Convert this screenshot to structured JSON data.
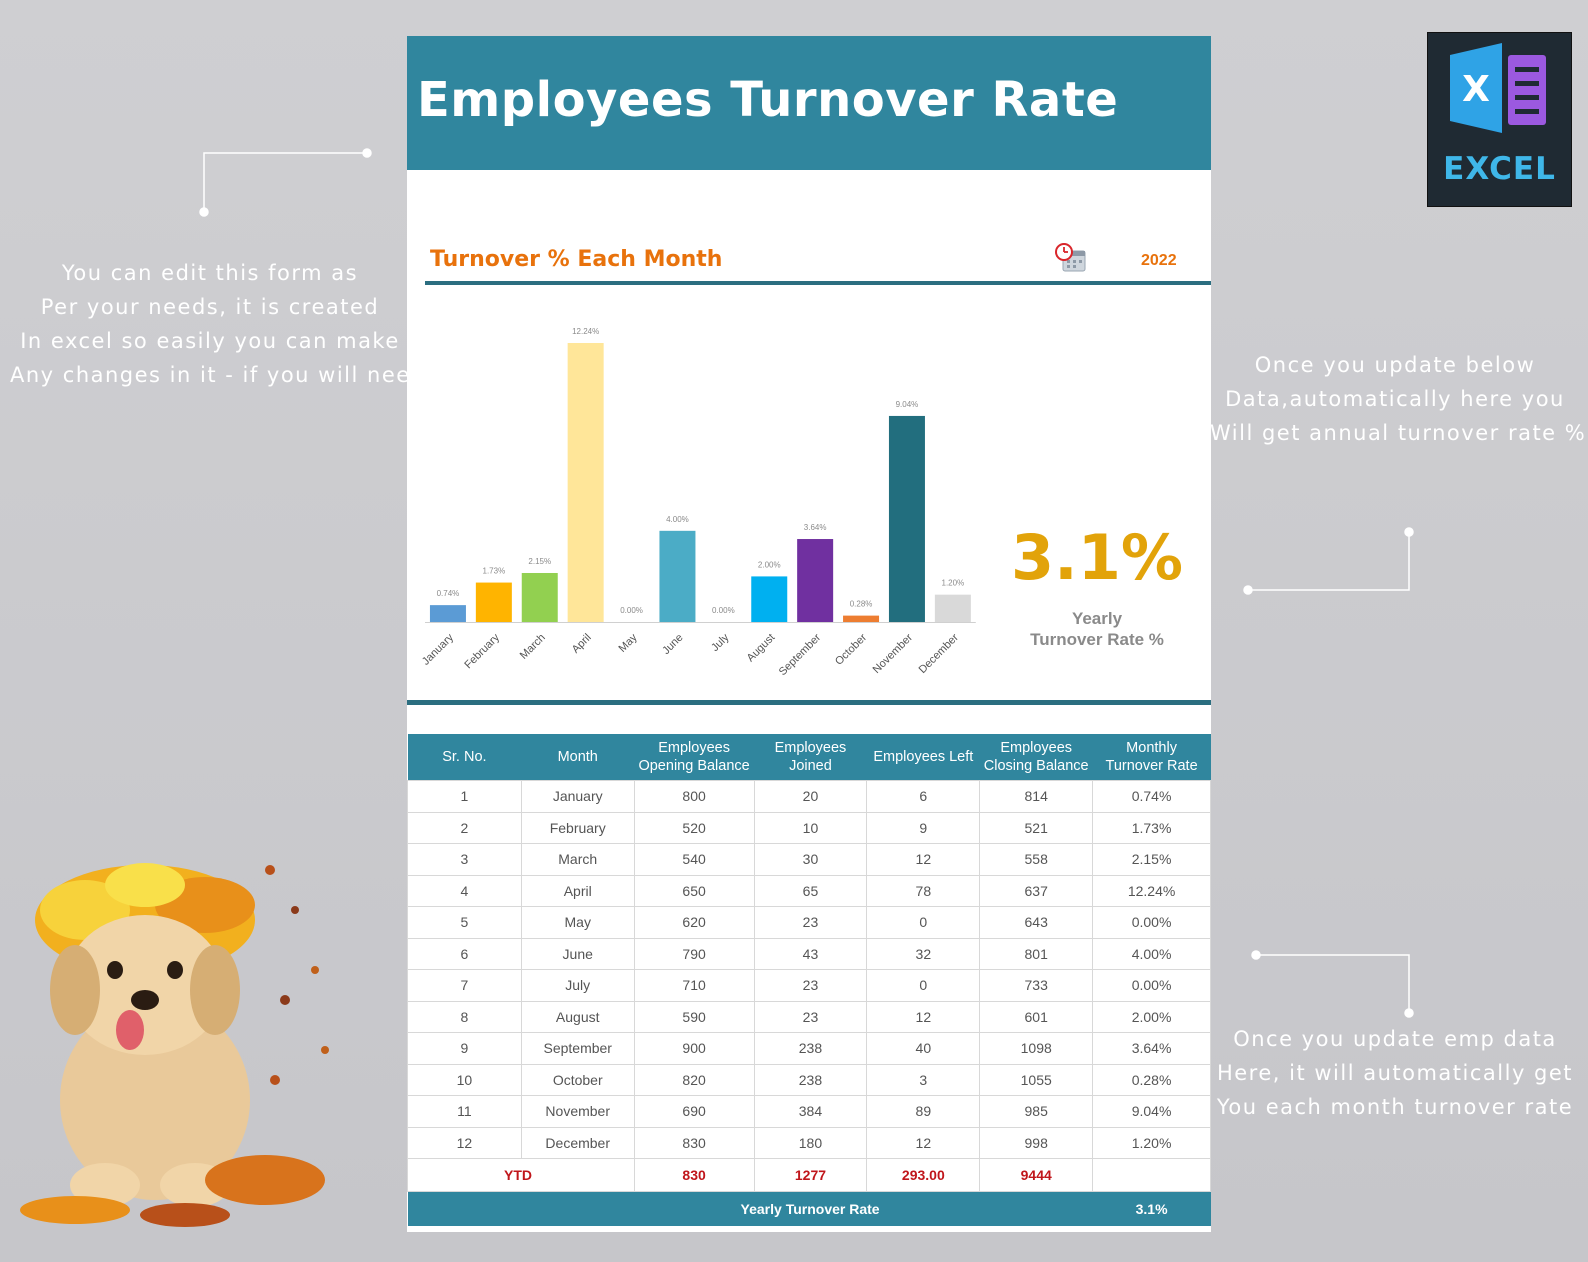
{
  "header": {
    "title": "Employees Turnover Rate"
  },
  "chart_header": {
    "title": "Turnover % Each Month",
    "year": "2022"
  },
  "notes": {
    "left": [
      "You can edit this form as",
      "Per your needs, it is created",
      "In excel so easily you can make",
      "Any changes in it - if you will need"
    ],
    "right_top": [
      "Once you update below",
      "Data,automatically here you",
      "Will get annual turnover rate %"
    ],
    "right_bottom": [
      "Once you update emp data",
      "Here, it will automatically get",
      "You each month turnover rate"
    ]
  },
  "yearly_rate": {
    "value": "3.1%",
    "label_line1": "Yearly",
    "label_line2": "Turnover Rate %"
  },
  "logo": {
    "text": "EXCEL",
    "icon": "excel-logo-icon"
  },
  "icons": {
    "calendar": "calendar-clock-icon",
    "dog": "puppy-with-leaves-image"
  },
  "chart_data": {
    "type": "bar",
    "categories": [
      "January",
      "February",
      "March",
      "April",
      "May",
      "June",
      "July",
      "August",
      "September",
      "October",
      "November",
      "December"
    ],
    "values": [
      0.74,
      1.73,
      2.15,
      12.24,
      0.0,
      4.0,
      0.0,
      2.0,
      3.64,
      0.28,
      9.04,
      1.2
    ],
    "data_labels": [
      "0.74%",
      "1.73%",
      "2.15%",
      "12.24%",
      "0.00%",
      "4.00%",
      "0.00%",
      "2.00%",
      "3.64%",
      "0.28%",
      "9.04%",
      "1.20%"
    ],
    "colors": [
      "#5b9bd5",
      "#ffb400",
      "#92d050",
      "#ffe699",
      "#a5a5a5",
      "#4bacc6",
      "#a5a5a5",
      "#00b0f0",
      "#7030a0",
      "#ed7d31",
      "#226e7e",
      "#d9d9d9"
    ],
    "ylim": [
      0,
      12.24
    ],
    "grid": false,
    "legend": "none",
    "title": "Turnover % Each Month"
  },
  "table": {
    "headers": [
      [
        "Sr. No."
      ],
      [
        "Month"
      ],
      [
        "Employees",
        "Opening Balance"
      ],
      [
        "Employees",
        "Joined"
      ],
      [
        "Employees Left"
      ],
      [
        "Employees",
        "Closing Balance"
      ],
      [
        "Monthly",
        "Turnover Rate"
      ]
    ],
    "rows": [
      [
        "1",
        "January",
        "800",
        "20",
        "6",
        "814",
        "0.74%"
      ],
      [
        "2",
        "February",
        "520",
        "10",
        "9",
        "521",
        "1.73%"
      ],
      [
        "3",
        "March",
        "540",
        "30",
        "12",
        "558",
        "2.15%"
      ],
      [
        "4",
        "April",
        "650",
        "65",
        "78",
        "637",
        "12.24%"
      ],
      [
        "5",
        "May",
        "620",
        "23",
        "0",
        "643",
        "0.00%"
      ],
      [
        "6",
        "June",
        "790",
        "43",
        "32",
        "801",
        "4.00%"
      ],
      [
        "7",
        "July",
        "710",
        "23",
        "0",
        "733",
        "0.00%"
      ],
      [
        "8",
        "August",
        "590",
        "23",
        "12",
        "601",
        "2.00%"
      ],
      [
        "9",
        "September",
        "900",
        "238",
        "40",
        "1098",
        "3.64%"
      ],
      [
        "10",
        "October",
        "820",
        "238",
        "3",
        "1055",
        "0.28%"
      ],
      [
        "11",
        "November",
        "690",
        "384",
        "89",
        "985",
        "9.04%"
      ],
      [
        "12",
        "December",
        "830",
        "180",
        "12",
        "998",
        "1.20%"
      ]
    ],
    "ytd": {
      "label": "YTD",
      "opening": "830",
      "joined": "1277",
      "left": "293.00",
      "closing": "9444",
      "rate": ""
    },
    "footer": {
      "label": "Yearly Turnover Rate",
      "value": "3.1%"
    }
  },
  "accent_colors": {
    "header": "#30869e",
    "rule": "#2b6e80",
    "orange": "#e8720c",
    "gold": "#e2a30a",
    "ytd_red": "#c0161b"
  }
}
